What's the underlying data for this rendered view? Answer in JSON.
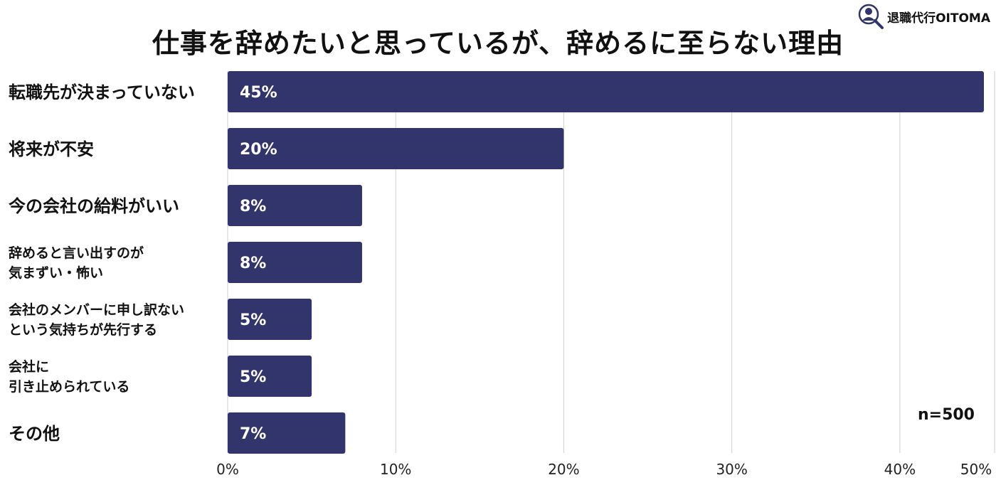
{
  "brand": {
    "name": "退職代行OITOMA",
    "icon": "person-magnifier-icon"
  },
  "chart_data": {
    "type": "bar",
    "orientation": "horizontal",
    "title": "仕事を辞めたいと思っているが、辞めるに至らない理由",
    "categories": [
      [
        "転職先が決まっていない"
      ],
      [
        "将来が不安"
      ],
      [
        "今の会社の給料がいい"
      ],
      [
        "辞めると言い出すのが",
        "気まずい・怖い"
      ],
      [
        "会社のメンバーに申し訳ない",
        "という気持ちが先行する"
      ],
      [
        "会社に",
        "引き止められている"
      ],
      [
        "その他"
      ]
    ],
    "values": [
      45,
      20,
      8,
      8,
      5,
      5,
      7
    ],
    "value_labels": [
      "45%",
      "20%",
      "8%",
      "8%",
      "5%",
      "5%",
      "7%"
    ],
    "xlim": [
      0,
      45
    ],
    "xticks": [
      0,
      10,
      20,
      30,
      40,
      50
    ],
    "xtick_labels": [
      "0%",
      "10%",
      "20%",
      "30%",
      "40%",
      "50%"
    ],
    "grid": true,
    "annotation": "n=500",
    "bar_color": "#32356b",
    "grid_color": "#cfcfcf"
  }
}
